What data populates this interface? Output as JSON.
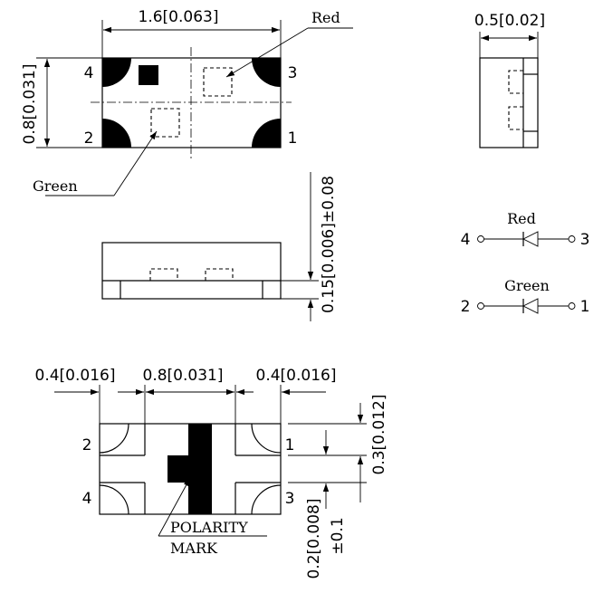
{
  "top_view": {
    "width_dim": "1.6[0.063]",
    "height_dim": "0.8[0.031]",
    "label_red": "Red",
    "label_green": "Green",
    "pins": {
      "tl": "4",
      "tr": "3",
      "bl": "2",
      "br": "1"
    }
  },
  "side_view": {
    "width_dim": "0.5[0.02]"
  },
  "front_view": {
    "height_dim_a": "0.15[0.006]±0.08"
  },
  "schematic": {
    "red_label": "Red",
    "red_left_pin": "4",
    "red_right_pin": "3",
    "green_label": "Green",
    "green_left_pin": "2",
    "green_right_pin": "1"
  },
  "pad_layout": {
    "dim_left": "0.4[0.016]",
    "dim_mid": "0.8[0.031]",
    "dim_right": "0.4[0.016]",
    "dim_pad_height": "0.3[0.012]",
    "dim_gap_a": "0.2[0.008]",
    "dim_gap_b": "±0.1",
    "polarity_line1": "POLARITY",
    "polarity_line2": "MARK",
    "pins": {
      "tl": "2",
      "tr": "1",
      "bl": "4",
      "br": "3"
    }
  }
}
